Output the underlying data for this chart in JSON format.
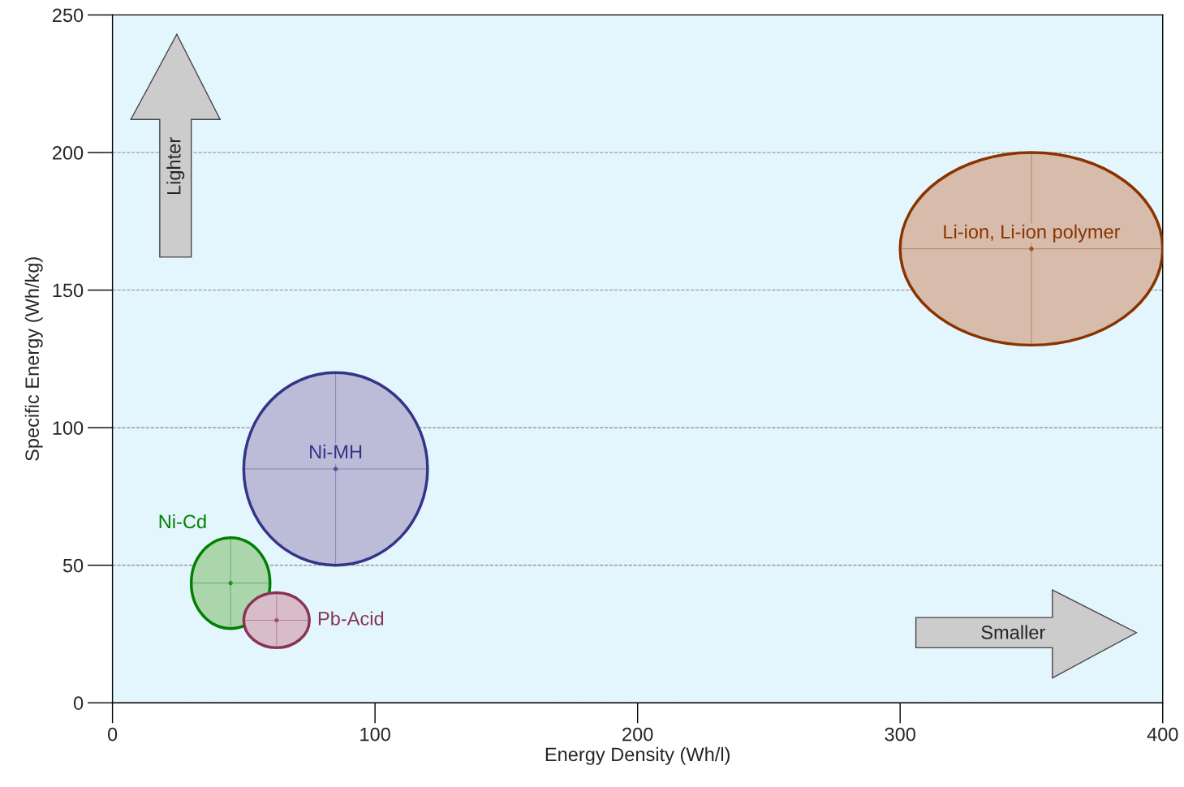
{
  "chart_data": {
    "type": "scatter",
    "xlabel": "Energy Density (Wh/l)",
    "ylabel": "Specific Energy (Wh/kg)",
    "xlim": [
      0,
      400
    ],
    "ylim": [
      0,
      250
    ],
    "xticks": [
      0,
      100,
      200,
      300,
      400
    ],
    "yticks": [
      0,
      50,
      100,
      150,
      200,
      250
    ],
    "grid": "y",
    "series": [
      {
        "name": "Li-ion, Li-ion polymer",
        "color": "#8a3300",
        "x": [
          350
        ],
        "values": [
          165
        ],
        "xerrors": [
          [
            300,
            400
          ]
        ],
        "errors": [
          [
            130,
            200
          ]
        ]
      },
      {
        "name": "Ni-MH",
        "color": "#333388",
        "x": [
          85
        ],
        "values": [
          85
        ],
        "xerrors": [
          [
            50,
            120
          ]
        ],
        "errors": [
          [
            50,
            120
          ]
        ]
      },
      {
        "name": "Ni-Cd",
        "color": "#008000",
        "x": [
          45
        ],
        "values": [
          43.5
        ],
        "xerrors": [
          [
            30,
            60
          ]
        ],
        "errors": [
          [
            27,
            60
          ]
        ]
      },
      {
        "name": "Pb-Acid",
        "color": "#883355",
        "x": [
          62.5
        ],
        "values": [
          30
        ],
        "xerrors": [
          [
            50,
            75
          ]
        ],
        "errors": [
          [
            20,
            40
          ]
        ]
      }
    ],
    "annotations": [
      "Lighter",
      "Smaller"
    ]
  }
}
